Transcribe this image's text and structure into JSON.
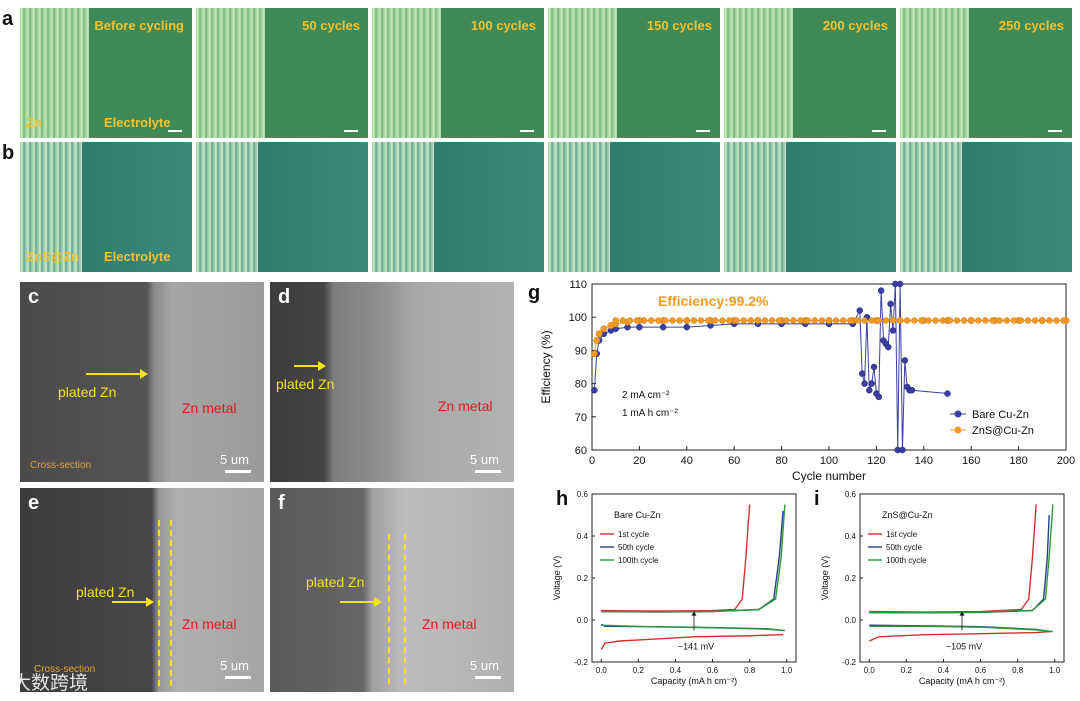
{
  "panels": {
    "a": {
      "letter": "a",
      "captions": [
        "Before cycling",
        "50 cycles",
        "100 cycles",
        "150 cycles",
        "200 cycles",
        "250 cycles"
      ],
      "label_left": "Zn",
      "label_right": "Electrolyte"
    },
    "b": {
      "letter": "b",
      "label_left": "ZnS@Zn",
      "label_right": "Electrolyte"
    },
    "c": {
      "letter": "c",
      "plated": "plated Zn",
      "metal": "Zn metal",
      "section": "Cross-section",
      "scale": "5 um"
    },
    "d": {
      "letter": "d",
      "plated": "plated Zn",
      "metal": "Zn metal",
      "scale": "5 um"
    },
    "e": {
      "letter": "e",
      "plated": "plated Zn",
      "metal": "Zn metal",
      "section": "Cross-section",
      "scale": "5 um"
    },
    "f": {
      "letter": "f",
      "plated": "plated Zn",
      "metal": "Zn metal",
      "scale": "5 um"
    }
  },
  "chart_data": [
    {
      "panel": "g",
      "type": "scatter",
      "xlabel": "Cycle number",
      "ylabel": "Efficiency (%)",
      "xlim": [
        0,
        200
      ],
      "ylim": [
        60,
        110
      ],
      "xticks": [
        0,
        20,
        40,
        60,
        80,
        100,
        120,
        140,
        160,
        180,
        200
      ],
      "yticks": [
        60,
        70,
        80,
        90,
        100,
        110
      ],
      "annotations": [
        "Efficiency:99.2%",
        "2 mA cm⁻²",
        "1 mA h cm⁻²"
      ],
      "legend_position": "bottom-right",
      "series": [
        {
          "name": "Bare Cu-Zn",
          "color": "#3a3fa0",
          "x": [
            1,
            2,
            3,
            5,
            8,
            10,
            15,
            20,
            30,
            40,
            50,
            60,
            70,
            80,
            90,
            100,
            110,
            113,
            114,
            115,
            116,
            117,
            118,
            119,
            120,
            121,
            122,
            123,
            124,
            125,
            126,
            127,
            128,
            129,
            130,
            131,
            132,
            133,
            134,
            135,
            150
          ],
          "y": [
            78,
            89,
            93,
            95,
            96,
            96.5,
            97,
            97,
            97,
            97,
            97.5,
            98,
            98,
            98,
            98,
            98,
            98,
            102,
            83,
            80,
            100,
            78,
            80,
            85,
            77,
            76,
            108,
            93,
            92,
            91,
            104,
            96,
            110,
            60,
            110,
            60,
            87,
            79,
            78,
            78,
            77
          ]
        },
        {
          "name": "ZnS@Cu-Zn",
          "color": "#f39a25",
          "x": [
            1,
            2,
            3,
            5,
            8,
            10,
            15,
            20,
            30,
            40,
            50,
            60,
            70,
            80,
            90,
            100,
            110,
            120,
            130,
            140,
            150,
            160,
            170,
            180,
            190,
            200
          ],
          "y": [
            89,
            93,
            95,
            96.5,
            97.5,
            98,
            98.5,
            99,
            99,
            99,
            99,
            99,
            99,
            99,
            99,
            99,
            99,
            99,
            99,
            99,
            99,
            99,
            99,
            99,
            99,
            99
          ]
        }
      ]
    },
    {
      "panel": "h",
      "type": "line",
      "title": "Bare Cu-Zn",
      "xlabel": "Capacity (mA h cm⁻²)",
      "ylabel": "Voltage (V)",
      "xlim": [
        -0.05,
        1.05
      ],
      "ylim": [
        -0.2,
        0.6
      ],
      "xticks": [
        0.0,
        0.2,
        0.4,
        0.6,
        0.8,
        1.0
      ],
      "yticks": [
        -0.2,
        0.0,
        0.2,
        0.4,
        0.6
      ],
      "annotation": "~141 mV",
      "series": [
        {
          "name": "1st cycle",
          "color": "#d0312d",
          "charge": [
            [
              0.0,
              0.045
            ],
            [
              0.2,
              0.043
            ],
            [
              0.4,
              0.043
            ],
            [
              0.6,
              0.045
            ],
            [
              0.72,
              0.05
            ],
            [
              0.76,
              0.1
            ],
            [
              0.78,
              0.3
            ],
            [
              0.8,
              0.55
            ]
          ],
          "discharge": [
            [
              0.0,
              -0.14
            ],
            [
              0.02,
              -0.11
            ],
            [
              0.1,
              -0.1
            ],
            [
              0.3,
              -0.09
            ],
            [
              0.5,
              -0.08
            ],
            [
              0.8,
              -0.075
            ],
            [
              0.98,
              -0.07
            ]
          ]
        },
        {
          "name": "50th cycle",
          "color": "#2b3f8f",
          "charge": [
            [
              0.0,
              0.04
            ],
            [
              0.3,
              0.038
            ],
            [
              0.6,
              0.04
            ],
            [
              0.85,
              0.05
            ],
            [
              0.93,
              0.1
            ],
            [
              0.96,
              0.3
            ],
            [
              0.98,
              0.52
            ]
          ],
          "discharge": [
            [
              0.0,
              -0.02
            ],
            [
              0.02,
              -0.03
            ],
            [
              0.3,
              -0.032
            ],
            [
              0.6,
              -0.036
            ],
            [
              0.9,
              -0.042
            ],
            [
              0.98,
              -0.05
            ]
          ]
        },
        {
          "name": "100th cycle",
          "color": "#2a9a3a",
          "charge": [
            [
              0.0,
              0.04
            ],
            [
              0.3,
              0.039
            ],
            [
              0.6,
              0.041
            ],
            [
              0.85,
              0.05
            ],
            [
              0.94,
              0.1
            ],
            [
              0.97,
              0.3
            ],
            [
              0.99,
              0.55
            ]
          ],
          "discharge": [
            [
              0.0,
              -0.025
            ],
            [
              0.3,
              -0.033
            ],
            [
              0.6,
              -0.037
            ],
            [
              0.9,
              -0.044
            ],
            [
              0.99,
              -0.05
            ]
          ]
        }
      ]
    },
    {
      "panel": "i",
      "type": "line",
      "title": "ZnS@Cu-Zn",
      "xlabel": "Capacity (mA h cm⁻²)",
      "ylabel": "Voltage (V)",
      "xlim": [
        -0.05,
        1.05
      ],
      "ylim": [
        -0.2,
        0.6
      ],
      "xticks": [
        0.0,
        0.2,
        0.4,
        0.6,
        0.8,
        1.0
      ],
      "yticks": [
        -0.2,
        0.0,
        0.2,
        0.4,
        0.6
      ],
      "annotation": "~105 mV",
      "series": [
        {
          "name": "1st cycle",
          "color": "#d0312d",
          "charge": [
            [
              0.0,
              0.04
            ],
            [
              0.3,
              0.038
            ],
            [
              0.6,
              0.04
            ],
            [
              0.82,
              0.05
            ],
            [
              0.86,
              0.1
            ],
            [
              0.88,
              0.3
            ],
            [
              0.9,
              0.55
            ]
          ],
          "discharge": [
            [
              0.0,
              -0.1
            ],
            [
              0.05,
              -0.08
            ],
            [
              0.3,
              -0.07
            ],
            [
              0.6,
              -0.065
            ],
            [
              0.9,
              -0.06
            ],
            [
              0.98,
              -0.055
            ]
          ]
        },
        {
          "name": "50th cycle",
          "color": "#2b3f8f",
          "charge": [
            [
              0.0,
              0.035
            ],
            [
              0.3,
              0.034
            ],
            [
              0.6,
              0.036
            ],
            [
              0.88,
              0.045
            ],
            [
              0.94,
              0.1
            ],
            [
              0.96,
              0.3
            ],
            [
              0.97,
              0.5
            ]
          ],
          "discharge": [
            [
              0.0,
              -0.025
            ],
            [
              0.3,
              -0.028
            ],
            [
              0.6,
              -0.032
            ],
            [
              0.9,
              -0.045
            ],
            [
              0.98,
              -0.055
            ]
          ]
        },
        {
          "name": "100th cycle",
          "color": "#2a9a3a",
          "charge": [
            [
              0.0,
              0.035
            ],
            [
              0.3,
              0.035
            ],
            [
              0.6,
              0.037
            ],
            [
              0.88,
              0.046
            ],
            [
              0.95,
              0.1
            ],
            [
              0.97,
              0.3
            ],
            [
              0.99,
              0.55
            ]
          ],
          "discharge": [
            [
              0.0,
              -0.03
            ],
            [
              0.3,
              -0.03
            ],
            [
              0.6,
              -0.034
            ],
            [
              0.9,
              -0.047
            ],
            [
              0.99,
              -0.055
            ]
          ]
        }
      ]
    }
  ],
  "watermark": "大数跨境"
}
